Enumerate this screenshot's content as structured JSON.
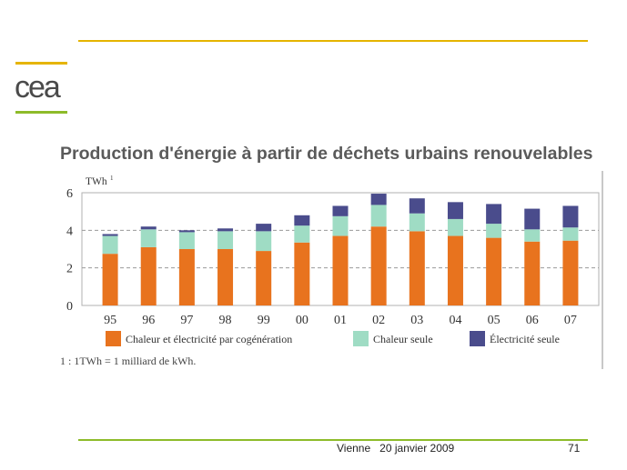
{
  "logo": {
    "text": "cea"
  },
  "chart_data": {
    "type": "bar",
    "stacked": true,
    "title": "Production d'énergie à partir de déchets urbains renouvelables",
    "ylabel": "TWh",
    "ylabel_sup": "1",
    "xlabel": "",
    "ylim": [
      0,
      6
    ],
    "yticks": [
      0,
      2,
      4,
      6
    ],
    "grid": "dashed at 2 and 4",
    "categories": [
      "95",
      "96",
      "97",
      "98",
      "99",
      "00",
      "01",
      "02",
      "03",
      "04",
      "05",
      "06",
      "07"
    ],
    "series": [
      {
        "name": "Chaleur et électricité par cogénération",
        "color": "#e8731e",
        "values": [
          2.75,
          3.1,
          3.0,
          3.0,
          2.9,
          3.35,
          3.7,
          4.2,
          3.95,
          3.7,
          3.6,
          3.4,
          3.45
        ]
      },
      {
        "name": "Chaleur seule",
        "color": "#9fdcc4",
        "values": [
          0.95,
          0.95,
          0.9,
          0.95,
          1.05,
          0.9,
          1.05,
          1.15,
          0.95,
          0.9,
          0.75,
          0.65,
          0.7
        ]
      },
      {
        "name": "Électricité seule",
        "color": "#4a4c8c",
        "values": [
          0.1,
          0.15,
          0.1,
          0.15,
          0.4,
          0.55,
          0.55,
          0.6,
          0.8,
          0.9,
          1.05,
          1.1,
          1.15
        ]
      }
    ],
    "legend_position": "bottom",
    "footnote": "1 : 1TWh = 1 milliard de kWh."
  },
  "footer": {
    "location": "Vienne",
    "date": "20 janvier 2009",
    "page": "71"
  }
}
